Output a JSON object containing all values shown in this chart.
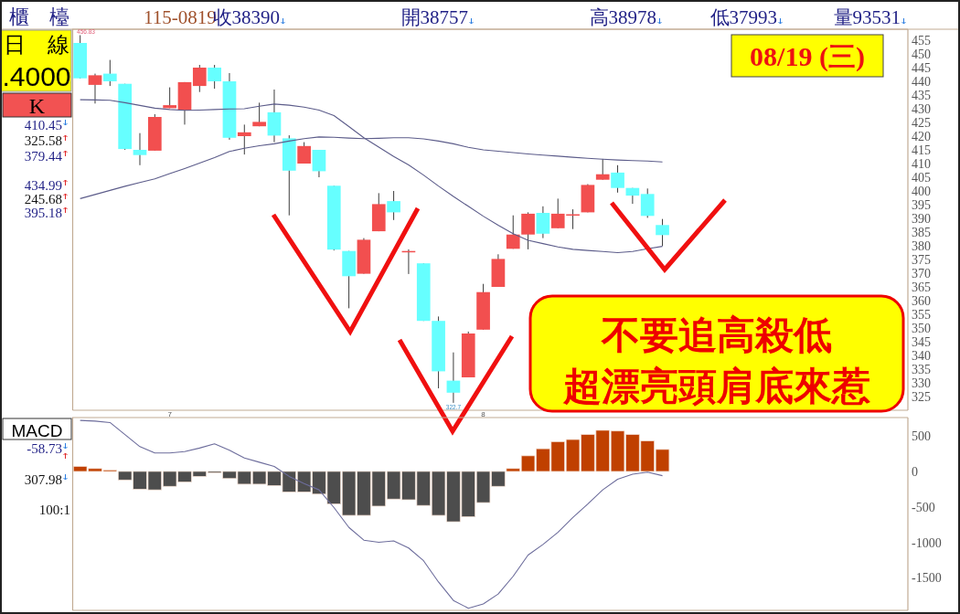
{
  "chart_data": [
    {
      "type": "candlestick",
      "title": "櫃　檯",
      "categories": [
        null,
        null,
        null,
        null,
        null,
        null,
        "7",
        null,
        null,
        null,
        null,
        null,
        null,
        null,
        null,
        null,
        null,
        null,
        null,
        null,
        null,
        null,
        null,
        null,
        null,
        null,
        null,
        "8",
        null,
        null,
        null,
        null,
        null,
        null,
        null,
        null,
        null,
        null,
        null,
        null
      ],
      "ohlc": [
        [
          454,
          456.83,
          441,
          441.1
        ],
        [
          438.7,
          442.8,
          431.9,
          442.2
        ],
        [
          442.8,
          447.8,
          438.3,
          440
        ],
        [
          439.1,
          439.1,
          415,
          415.3
        ],
        [
          415,
          421.1,
          409.4,
          413.1
        ],
        [
          414.7,
          428,
          414.7,
          427
        ],
        [
          430.2,
          437.8,
          430.2,
          431.3
        ],
        [
          429.4,
          439.7,
          424.2,
          439.7
        ],
        [
          438.3,
          446,
          436.1,
          445
        ],
        [
          445,
          446,
          437.3,
          440
        ],
        [
          440,
          443,
          418.7,
          419.4
        ],
        [
          420,
          424.2,
          413.3,
          421.4
        ],
        [
          423.6,
          432.2,
          423.6,
          425.2
        ],
        [
          428.7,
          437,
          417.8,
          420.2
        ],
        [
          419.2,
          420.3,
          391.1,
          407.4
        ],
        [
          410,
          417.8,
          410,
          416.4
        ],
        [
          415,
          415,
          405,
          407.2
        ],
        [
          401.9,
          401.9,
          378.3,
          378.6
        ],
        [
          378.1,
          378.1,
          357.2,
          368.9
        ],
        [
          369.8,
          382.8,
          369.8,
          382.2
        ],
        [
          385.3,
          399.2,
          385.3,
          395.2
        ],
        [
          396.3,
          400,
          389.4,
          392.2
        ],
        [
          378.1,
          378.7,
          369.7,
          378.1
        ],
        [
          373.6,
          373.6,
          352.6,
          352.6
        ],
        [
          352.6,
          354.2,
          328,
          334.2
        ],
        [
          330.8,
          341.1,
          322.7,
          326.4
        ],
        [
          332,
          348.7,
          332,
          348
        ],
        [
          349.4,
          366.1,
          349.4,
          363.1
        ],
        [
          365,
          376.9,
          365,
          375.2
        ],
        [
          378.9,
          391.1,
          378.9,
          384.1
        ],
        [
          384.1,
          392.2,
          378.7,
          391.7
        ],
        [
          392,
          394.4,
          382.8,
          384.4
        ],
        [
          386.4,
          397.2,
          386.4,
          391.7
        ],
        [
          391,
          393.3,
          386.1,
          391.5
        ],
        [
          392.2,
          402.5,
          392.2,
          402.2
        ],
        [
          404.1,
          411.7,
          404.1,
          406.1
        ],
        [
          406.7,
          409.4,
          399.4,
          401.1
        ],
        [
          401.1,
          401.1,
          395.3,
          398.3
        ],
        [
          398.9,
          400.9,
          390.2,
          390.9
        ],
        [
          387.57,
          389.78,
          379.93,
          383.9
        ]
      ],
      "colors": [
        "#66ffff",
        "#f24f4f",
        "#66ffff",
        "#66ffff",
        "#66ffff",
        "#f24f4f",
        "#f24f4f",
        "#f24f4f",
        "#f24f4f",
        "#66ffff",
        "#66ffff",
        "#f24f4f",
        "#f24f4f",
        "#66ffff",
        "#66ffff",
        "#f24f4f",
        "#66ffff",
        "#66ffff",
        "#66ffff",
        "#f24f4f",
        "#f24f4f",
        "#66ffff",
        "#f24f4f",
        "#66ffff",
        "#66ffff",
        "#66ffff",
        "#f24f4f",
        "#f24f4f",
        "#f24f4f",
        "#f24f4f",
        "#f24f4f",
        "#66ffff",
        "#f24f4f",
        "#f24f4f",
        "#f24f4f",
        "#f24f4f",
        "#66ffff",
        "#66ffff",
        "#66ffff",
        "#66ffff"
      ],
      "series": [
        {
          "type": "line",
          "color": "#5c5c8a",
          "values": [
            433.3,
            433.2,
            433.1,
            432.2,
            431.2,
            430.2,
            429.7,
            429.4,
            429.5,
            429.7,
            429.9,
            430,
            430.9,
            431.7,
            431.3,
            430.6,
            429.5,
            427.5,
            423.5,
            419.4,
            416,
            412.6,
            409.5,
            405.8,
            401.8,
            398,
            394.4,
            390.8,
            387.5,
            384.4,
            382,
            380.8,
            379.6,
            378.7,
            378.3,
            377.9,
            377.5,
            377.9,
            378.9,
            379.8
          ]
        },
        {
          "type": "line",
          "color": "#5c5c8a",
          "values": [
            397.2,
            398.7,
            400.2,
            401.7,
            403.1,
            404.4,
            406.3,
            408.2,
            410.2,
            412.2,
            414.4,
            415.6,
            416.5,
            417.2,
            418.2,
            419.1,
            419.7,
            419.6,
            419.3,
            419.1,
            419.2,
            419.4,
            419.4,
            419,
            418.2,
            417.2,
            415.9,
            415,
            414.5,
            414,
            413.5,
            413.1,
            412.7,
            412.3,
            411.9,
            411.6,
            411.3,
            411.1,
            410.9,
            410.6
          ]
        }
      ],
      "ylim": [
        320,
        459
      ],
      "yticks": [
        325,
        330,
        335,
        340,
        345,
        350,
        355,
        360,
        365,
        370,
        375,
        380,
        385,
        390,
        395,
        400,
        405,
        410,
        415,
        420,
        425,
        430,
        435,
        440,
        445,
        450,
        455
      ],
      "annotations": [
        "115-0819",
        "收38390",
        "開38757",
        "高38978",
        "低37993",
        "量93531",
        "日　線",
        ".4000",
        "K",
        "410.45",
        "325.58",
        "379.44",
        "434.99",
        "245.68",
        "395.18",
        "08/19 (三)",
        "不要追高殺低",
        "超漂亮頭肩底來惹",
        "456.83",
        "322.7"
      ]
    },
    {
      "type": "bar",
      "title": "MACD",
      "categories": [
        null,
        null,
        null,
        null,
        null,
        null,
        null,
        null,
        null,
        null,
        null,
        null,
        null,
        null,
        null,
        null,
        null,
        null,
        null,
        null,
        null,
        null,
        null,
        null,
        null,
        null,
        null,
        null,
        null,
        null,
        null,
        null,
        null,
        null,
        null,
        null,
        null,
        null,
        null,
        null
      ],
      "series": [
        {
          "values": [
            70,
            40,
            20,
            -120,
            -250,
            -260,
            -210,
            -150,
            -70,
            -20,
            -100,
            -180,
            -180,
            -200,
            -290,
            -290,
            -320,
            -460,
            -620,
            -620,
            -490,
            -390,
            -400,
            -480,
            -620,
            -710,
            -640,
            -440,
            -210,
            40,
            220,
            320,
            420,
            450,
            520,
            580,
            570,
            520,
            430,
            310
          ],
          "colors": [
            "#c04000",
            "#c04000",
            "#c04000",
            "#4d4d4d",
            "#4d4d4d",
            "#4d4d4d",
            "#4d4d4d",
            "#4d4d4d",
            "#4d4d4d",
            "#4d4d4d",
            "#4d4d4d",
            "#4d4d4d",
            "#4d4d4d",
            "#4d4d4d",
            "#4d4d4d",
            "#4d4d4d",
            "#4d4d4d",
            "#4d4d4d",
            "#4d4d4d",
            "#4d4d4d",
            "#4d4d4d",
            "#4d4d4d",
            "#4d4d4d",
            "#4d4d4d",
            "#4d4d4d",
            "#4d4d4d",
            "#4d4d4d",
            "#4d4d4d",
            "#4d4d4d",
            "#c04000",
            "#c04000",
            "#c04000",
            "#c04000",
            "#c04000",
            "#c04000",
            "#c04000",
            "#c04000",
            "#c04000",
            "#c04000",
            "#c04000"
          ]
        },
        {
          "type": "line",
          "color": "#6d6d9c",
          "values": [
            720,
            710,
            690,
            520,
            350,
            260,
            260,
            280,
            330,
            390,
            300,
            190,
            130,
            70,
            -70,
            -170,
            -260,
            -510,
            -790,
            -970,
            -1000,
            -980,
            -1080,
            -1260,
            -1560,
            -1820,
            -1930,
            -1870,
            -1730,
            -1480,
            -1180,
            -1030,
            -860,
            -650,
            -460,
            -260,
            -110,
            -40,
            -10,
            -60
          ]
        }
      ],
      "ylim": [
        -1960,
        760
      ],
      "yticks": [
        -1500,
        -1000,
        -500,
        0,
        500
      ],
      "tick_labels": "y",
      "annotations": [
        "-58.73",
        "307.98",
        "100:1"
      ]
    }
  ]
}
